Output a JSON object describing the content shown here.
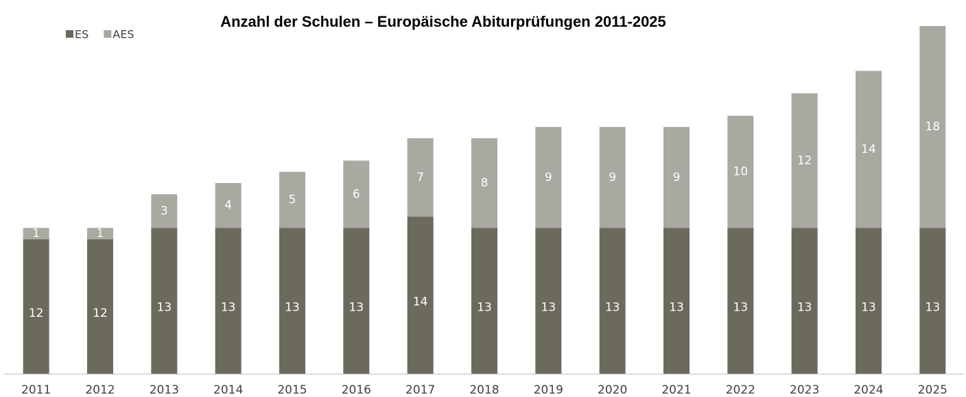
{
  "chart_data": {
    "type": "stacked_bar",
    "title": "Anzahl der Schulen – Europäische Abiturprüfungen 2011-2025",
    "categories": [
      "2011",
      "2012",
      "2013",
      "2014",
      "2015",
      "2016",
      "2017",
      "2018",
      "2019",
      "2020",
      "2021",
      "2022",
      "2023",
      "2024",
      "2025"
    ],
    "series": [
      {
        "name": "ES",
        "color": "#6b6a5c",
        "values": [
          12,
          12,
          13,
          13,
          13,
          13,
          14,
          13,
          13,
          13,
          13,
          13,
          13,
          13,
          13
        ]
      },
      {
        "name": "AES",
        "color": "#a9a8a1",
        "values": [
          1,
          1,
          3,
          4,
          5,
          6,
          7,
          8,
          9,
          9,
          9,
          10,
          12,
          14,
          18
        ]
      }
    ],
    "legend": "top-left"
  }
}
